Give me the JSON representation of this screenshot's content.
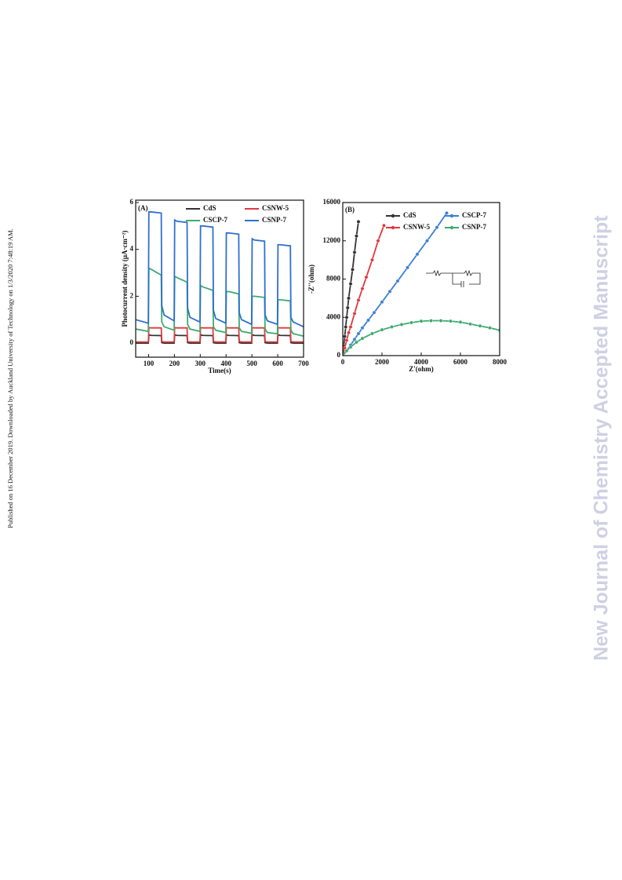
{
  "margin_note": "Published on 16 December 2019. Downloaded by Auckland University of Technology on 1/3/2020 7:48:19 AM.",
  "watermark": "New Journal of Chemistry Accepted Manuscript",
  "chart_data": [
    {
      "type": "line",
      "panel_label": "(A)",
      "x_label": "Time(s)",
      "y_label": "Photocurrent density (μA·cm⁻²)",
      "xlim": [
        50,
        700
      ],
      "xticks": [
        100,
        200,
        300,
        400,
        500,
        600,
        700
      ],
      "ylim": [
        -0.6,
        6.1
      ],
      "yticks": [
        0,
        2,
        4,
        6
      ],
      "grid": false,
      "markers": false,
      "x": [
        50,
        99,
        101,
        110,
        149,
        151,
        160,
        199,
        201,
        210,
        249,
        251,
        260,
        299,
        301,
        310,
        349,
        351,
        360,
        399,
        401,
        410,
        449,
        451,
        460,
        499,
        501,
        510,
        549,
        551,
        560,
        599,
        601,
        610,
        649,
        651,
        660,
        700
      ],
      "series": [
        {
          "name": "CdS",
          "color": "#333333",
          "values": [
            0,
            0,
            0.35,
            0.33,
            0.32,
            0.02,
            0,
            0,
            0.35,
            0.33,
            0.32,
            0.02,
            0,
            0,
            0.35,
            0.33,
            0.32,
            0.02,
            0,
            0,
            0.35,
            0.33,
            0.32,
            0.02,
            0,
            0,
            0.35,
            0.33,
            0.32,
            0.02,
            0,
            0,
            0.35,
            0.33,
            0.32,
            0.02,
            0,
            0
          ]
        },
        {
          "name": "CSNW-5",
          "color": "#e0393e",
          "values": [
            0.05,
            0.05,
            0.66,
            0.65,
            0.65,
            0.08,
            0.05,
            0.05,
            0.66,
            0.65,
            0.65,
            0.08,
            0.05,
            0.05,
            0.66,
            0.65,
            0.65,
            0.08,
            0.05,
            0.05,
            0.66,
            0.65,
            0.65,
            0.08,
            0.05,
            0.05,
            0.66,
            0.65,
            0.65,
            0.08,
            0.05,
            0.05,
            0.66,
            0.65,
            0.65,
            0.08,
            0.05,
            0.05
          ]
        },
        {
          "name": "CSCP-7",
          "color": "#3dab6e",
          "values": [
            0.6,
            0.5,
            3.2,
            3.15,
            2.9,
            0.9,
            0.7,
            0.55,
            2.85,
            2.8,
            2.6,
            0.8,
            0.6,
            0.5,
            2.45,
            2.4,
            2.25,
            0.7,
            0.55,
            0.45,
            2.2,
            2.2,
            2.1,
            0.65,
            0.5,
            0.42,
            2.0,
            2.0,
            1.95,
            0.6,
            0.45,
            0.4,
            1.85,
            1.85,
            1.8,
            0.55,
            0.4,
            0.3
          ]
        },
        {
          "name": "CSNP-7",
          "color": "#2f6fd0",
          "values": [
            1.0,
            0.85,
            5.6,
            5.6,
            5.55,
            1.6,
            1.2,
            0.95,
            5.25,
            5.2,
            5.15,
            1.5,
            1.1,
            0.9,
            5.0,
            5.0,
            4.95,
            1.4,
            1.05,
            0.85,
            4.7,
            4.7,
            4.65,
            1.3,
            1.0,
            0.8,
            4.45,
            4.4,
            4.35,
            1.2,
            0.95,
            0.8,
            4.2,
            4.2,
            4.15,
            1.1,
            0.9,
            0.7
          ]
        }
      ]
    },
    {
      "type": "line",
      "panel_label": "(B)",
      "x_label": "Z'(ohm)",
      "y_label": "-Z''(ohm)",
      "xlim": [
        0,
        8000
      ],
      "xticks": [
        0,
        2000,
        4000,
        6000,
        8000
      ],
      "ylim": [
        0,
        16000
      ],
      "yticks": [
        0,
        4000,
        8000,
        12000,
        16000
      ],
      "grid": false,
      "markers": true,
      "series": [
        {
          "name": "CdS",
          "color": "#333333",
          "x": [
            0,
            50,
            100,
            150,
            200,
            250,
            300,
            400,
            500,
            600,
            700,
            800
          ],
          "values": [
            0,
            1000,
            2000,
            3000,
            4000,
            5000,
            6000,
            7500,
            9000,
            10800,
            12500,
            14000
          ]
        },
        {
          "name": "CSNW-5",
          "color": "#e0393e",
          "x": [
            0,
            100,
            200,
            300,
            400,
            600,
            800,
            1000,
            1200,
            1500,
            1800,
            2100
          ],
          "values": [
            0,
            800,
            1600,
            2400,
            3000,
            4400,
            5800,
            7000,
            8200,
            10000,
            12000,
            13600
          ]
        },
        {
          "name": "CSCP-7",
          "color": "#3b7fd4",
          "x": [
            0,
            200,
            400,
            600,
            800,
            1000,
            1300,
            1600,
            2000,
            2400,
            2800,
            3300,
            3800,
            4300,
            4800,
            5300
          ],
          "values": [
            0,
            500,
            1100,
            1700,
            2300,
            2900,
            3700,
            4500,
            5600,
            6700,
            7800,
            9200,
            10600,
            12000,
            13400,
            14900
          ]
        },
        {
          "name": "CSNP-7",
          "color": "#3dab6e",
          "x": [
            0,
            200,
            400,
            700,
            1000,
            1500,
            2000,
            2500,
            3000,
            3500,
            4000,
            4500,
            5000,
            5500,
            6000,
            6500,
            7000,
            7500,
            8000
          ],
          "values": [
            0,
            500,
            900,
            1400,
            1800,
            2300,
            2700,
            3000,
            3250,
            3450,
            3600,
            3650,
            3650,
            3600,
            3500,
            3300,
            3100,
            2900,
            2650
          ]
        }
      ]
    }
  ]
}
